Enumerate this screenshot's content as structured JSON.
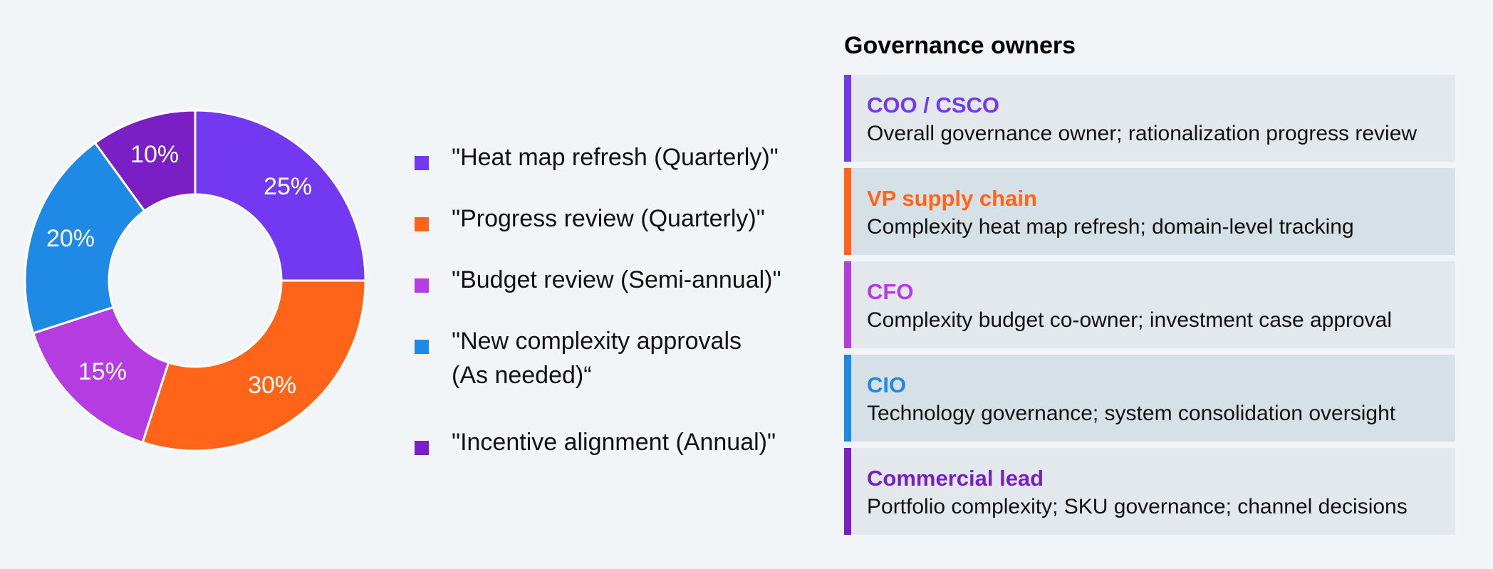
{
  "chart_data": {
    "type": "pie",
    "donut": true,
    "title": "",
    "slices": [
      {
        "label": "\"Heat map refresh (Quarterly)\"",
        "value": 25,
        "value_label": "25%",
        "color": "#7339f0"
      },
      {
        "label": "\"Progress review (Quarterly)\"",
        "value": 30,
        "value_label": "30%",
        "color": "#ff6418"
      },
      {
        "label": "\"Budget review (Semi-annual)\"",
        "value": 15,
        "value_label": "15%",
        "color": "#b43ce0"
      },
      {
        "label": "\"New complexity approvals (As needed)“",
        "value": 20,
        "value_label": "20%",
        "color": "#1f8ae6"
      },
      {
        "label": "\"Incentive alignment (Annual)\"",
        "value": 10,
        "value_label": "10%",
        "color": "#7a1fc4"
      }
    ],
    "legend_placement": "right"
  },
  "legend": {
    "items": [
      {
        "label": "\"Heat map refresh (Quarterly)\"",
        "color": "#7339f0"
      },
      {
        "label": "\"Progress review (Quarterly)\"",
        "color": "#ff6418"
      },
      {
        "label": "\"Budget review (Semi-annual)\"",
        "color": "#b43ce0"
      },
      {
        "label": "\"New complexity approvals (As needed)“",
        "color": "#1f8ae6"
      },
      {
        "label": "\"Incentive alignment (Annual)\"",
        "color": "#7a1fc4"
      }
    ]
  },
  "governance": {
    "title": "Governance owners",
    "owners": [
      {
        "name": "COO / CSCO",
        "description": "Overall governance owner; rationalization progress review",
        "color": "#7339f0"
      },
      {
        "name": "VP supply chain",
        "description": "Complexity heat map refresh; domain-level tracking",
        "color": "#ff6418"
      },
      {
        "name": "CFO",
        "description": "Complexity budget co-owner; investment case approval",
        "color": "#b43ce0"
      },
      {
        "name": "CIO",
        "description": "Technology governance; system consolidation oversight",
        "color": "#1f8ae6"
      },
      {
        "name": "Commercial lead",
        "description": "Portfolio complexity; SKU governance; channel decisions",
        "color": "#7a1fc4"
      }
    ]
  }
}
